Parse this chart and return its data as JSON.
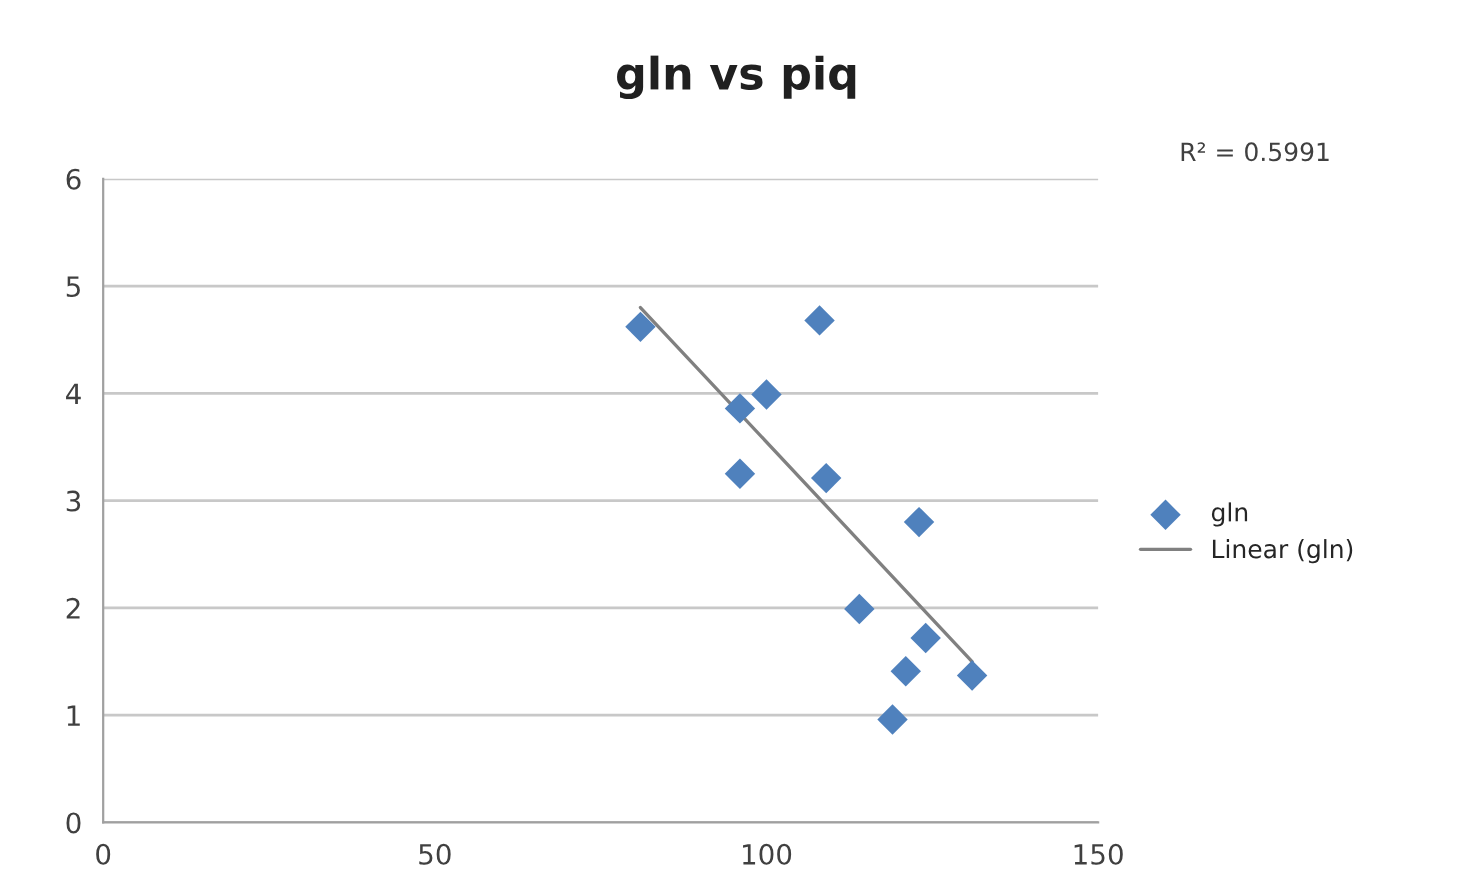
{
  "chart_data": {
    "type": "scatter",
    "title": "gln vs piq",
    "xlim": [
      0,
      150
    ],
    "xticks": [
      0,
      50,
      100,
      150
    ],
    "ylim": [
      0,
      6
    ],
    "yticks": [
      0,
      1,
      2,
      3,
      4,
      5,
      6
    ],
    "grid": "y",
    "legend": "right",
    "annotations": [
      "R² = 0.5991"
    ],
    "series": [
      {
        "name": "gln",
        "marker": "diamond",
        "color": "#4f81bd",
        "x": [
          81,
          108,
          100,
          96,
          96,
          109,
          123,
          114,
          124,
          121,
          131,
          119
        ],
        "values": [
          4.62,
          4.68,
          3.99,
          3.86,
          3.25,
          3.21,
          2.8,
          1.99,
          1.72,
          1.41,
          1.37,
          0.96
        ]
      },
      {
        "name": "Linear (gln)",
        "type": "line",
        "marker": "none",
        "color": "#808080",
        "x": [
          81,
          131
        ],
        "values": [
          4.8,
          1.5
        ]
      }
    ]
  }
}
